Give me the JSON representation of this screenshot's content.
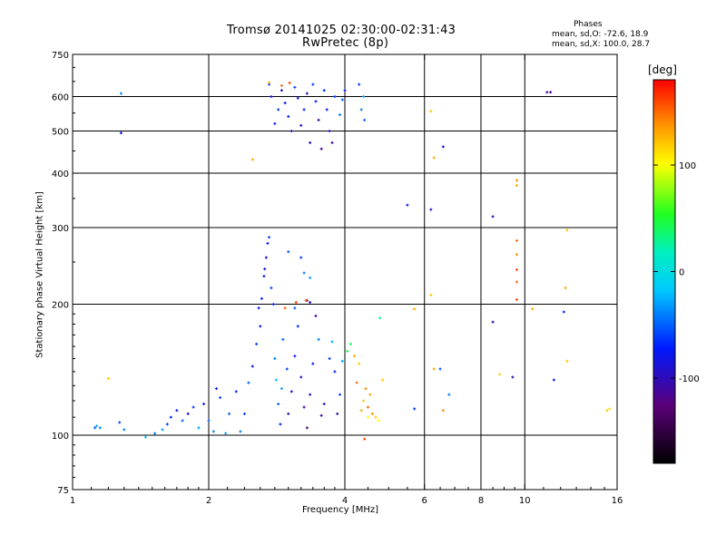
{
  "chart_data": {
    "type": "scatter",
    "title_line1": "Tromsø 20141025 02:30:00-02:31:43",
    "title_line2": "RwPretec (8p)",
    "phase_header": "Phases",
    "phase_o_text": "mean, sd,O: -72.6, 18.9",
    "phase_x_text": "mean, sd,X: 100.0, 28.7",
    "xlabel": "Frequency [MHz]",
    "ylabel": "Stationary phase Virtual Height [km]",
    "x_scale": "log",
    "y_scale": "log",
    "xlim": [
      1,
      16
    ],
    "ylim": [
      75,
      750
    ],
    "x_ticks": [
      1,
      2,
      4,
      6,
      8,
      10,
      16
    ],
    "y_ticks": [
      75,
      100,
      200,
      300,
      400,
      500,
      600,
      750
    ],
    "x_gridlines": [
      2,
      4,
      6,
      8,
      10
    ],
    "y_gridlines": [
      100,
      200,
      300,
      400,
      500,
      600
    ],
    "grid": true,
    "colorbar": {
      "title": "[deg]",
      "range": [
        -180,
        180
      ],
      "ticks": [
        100,
        0,
        -100
      ],
      "colormap": "rainbow (black-purple-blue-cyan-green-yellow-orange-red)"
    },
    "points": [
      [
        1.12,
        104,
        -50
      ],
      [
        1.13,
        105,
        -30
      ],
      [
        1.15,
        104,
        -40
      ],
      [
        1.27,
        107,
        -60
      ],
      [
        1.3,
        103,
        -40
      ],
      [
        1.28,
        610,
        -40
      ],
      [
        1.28,
        495,
        -80
      ],
      [
        1.2,
        135,
        120
      ],
      [
        1.45,
        99,
        -20
      ],
      [
        1.52,
        101,
        -40
      ],
      [
        1.58,
        103,
        -30
      ],
      [
        1.62,
        106,
        -60
      ],
      [
        1.65,
        110,
        -70
      ],
      [
        1.7,
        114,
        -80
      ],
      [
        1.75,
        108,
        -50
      ],
      [
        1.8,
        112,
        -90
      ],
      [
        1.85,
        116,
        -60
      ],
      [
        1.9,
        104,
        -30
      ],
      [
        1.95,
        118,
        -80
      ],
      [
        2.0,
        108,
        -50
      ],
      [
        2.05,
        102,
        -40
      ],
      [
        2.08,
        128,
        -70
      ],
      [
        2.12,
        122,
        -60
      ],
      [
        2.18,
        101,
        -30
      ],
      [
        2.22,
        112,
        -50
      ],
      [
        2.3,
        126,
        -70
      ],
      [
        2.35,
        102,
        -40
      ],
      [
        2.4,
        112,
        -60
      ],
      [
        2.45,
        132,
        -50
      ],
      [
        2.5,
        144,
        -80
      ],
      [
        2.55,
        162,
        -60
      ],
      [
        2.6,
        178,
        -80
      ],
      [
        2.62,
        206,
        -70
      ],
      [
        2.65,
        232,
        -80
      ],
      [
        2.68,
        256,
        -90
      ],
      [
        2.7,
        276,
        -70
      ],
      [
        2.72,
        285,
        -60
      ],
      [
        2.66,
        241,
        -85
      ],
      [
        2.58,
        196,
        -80
      ],
      [
        2.75,
        218,
        -60
      ],
      [
        2.78,
        200,
        -70
      ],
      [
        2.8,
        150,
        -40
      ],
      [
        2.82,
        134,
        -20
      ],
      [
        2.85,
        118,
        -50
      ],
      [
        2.88,
        106,
        -70
      ],
      [
        2.9,
        128,
        -30
      ],
      [
        2.92,
        166,
        -50
      ],
      [
        2.95,
        196,
        150
      ],
      [
        2.98,
        142,
        -60
      ],
      [
        3.0,
        112,
        -100
      ],
      [
        3.05,
        126,
        -90
      ],
      [
        3.1,
        152,
        -80
      ],
      [
        3.15,
        178,
        -70
      ],
      [
        3.2,
        136,
        -100
      ],
      [
        3.25,
        116,
        -110
      ],
      [
        3.3,
        104,
        -120
      ],
      [
        3.35,
        124,
        -90
      ],
      [
        3.4,
        146,
        -80
      ],
      [
        3.45,
        188,
        -110
      ],
      [
        3.5,
        166,
        -40
      ],
      [
        3.55,
        111,
        -110
      ],
      [
        3.6,
        118,
        -100
      ],
      [
        3.7,
        150,
        -60
      ],
      [
        3.75,
        164,
        -30
      ],
      [
        3.8,
        140,
        -70
      ],
      [
        3.85,
        112,
        -100
      ],
      [
        3.9,
        124,
        -60
      ],
      [
        3.95,
        148,
        -30
      ],
      [
        3.3,
        204,
        -110
      ],
      [
        3.35,
        202,
        -100
      ],
      [
        3.2,
        256,
        -60
      ],
      [
        3.0,
        264,
        -50
      ],
      [
        3.25,
        236,
        -40
      ],
      [
        3.35,
        230,
        -30
      ],
      [
        3.1,
        196,
        -50
      ],
      [
        3.12,
        202,
        160
      ],
      [
        3.28,
        204,
        150
      ],
      [
        4.05,
        156,
        50
      ],
      [
        4.12,
        162,
        40
      ],
      [
        4.2,
        152,
        130
      ],
      [
        4.25,
        132,
        150
      ],
      [
        4.3,
        146,
        120
      ],
      [
        4.35,
        114,
        130
      ],
      [
        4.4,
        120,
        120
      ],
      [
        4.45,
        128,
        140
      ],
      [
        4.5,
        116,
        150
      ],
      [
        4.55,
        124,
        130
      ],
      [
        4.6,
        112,
        140
      ],
      [
        4.68,
        110,
        120
      ],
      [
        4.75,
        108,
        100
      ],
      [
        4.78,
        186,
        30
      ],
      [
        4.85,
        134,
        120
      ],
      [
        4.42,
        98,
        160
      ],
      [
        4.5,
        110,
        100
      ],
      [
        2.72,
        640,
        -60
      ],
      [
        2.75,
        600,
        -80
      ],
      [
        2.8,
        520,
        -70
      ],
      [
        2.85,
        560,
        -60
      ],
      [
        2.9,
        620,
        -90
      ],
      [
        2.95,
        580,
        -80
      ],
      [
        3.0,
        540,
        -70
      ],
      [
        3.05,
        500,
        -100
      ],
      [
        3.1,
        630,
        -60
      ],
      [
        3.15,
        595,
        -80
      ],
      [
        3.2,
        515,
        -90
      ],
      [
        3.25,
        560,
        -70
      ],
      [
        3.3,
        610,
        -100
      ],
      [
        3.35,
        470,
        -90
      ],
      [
        3.4,
        640,
        -60
      ],
      [
        3.45,
        585,
        -80
      ],
      [
        3.5,
        530,
        -110
      ],
      [
        3.55,
        455,
        -120
      ],
      [
        3.6,
        620,
        -70
      ],
      [
        3.65,
        560,
        -80
      ],
      [
        3.7,
        500,
        -90
      ],
      [
        3.75,
        470,
        -110
      ],
      [
        3.8,
        600,
        -60
      ],
      [
        3.9,
        545,
        -40
      ],
      [
        3.95,
        590,
        -50
      ],
      [
        4.0,
        620,
        -70
      ],
      [
        4.3,
        640,
        -60
      ],
      [
        4.35,
        560,
        -40
      ],
      [
        4.4,
        600,
        -30
      ],
      [
        4.42,
        530,
        -50
      ],
      [
        2.72,
        646,
        130
      ],
      [
        2.9,
        636,
        150
      ],
      [
        3.02,
        645,
        160
      ],
      [
        2.5,
        430,
        130
      ],
      [
        5.5,
        338,
        -80
      ],
      [
        6.2,
        330,
        -90
      ],
      [
        6.2,
        555,
        120
      ],
      [
        6.3,
        434,
        130
      ],
      [
        6.6,
        460,
        -80
      ],
      [
        6.2,
        210,
        120
      ],
      [
        6.3,
        142,
        130
      ],
      [
        6.5,
        142,
        -50
      ],
      [
        6.6,
        114,
        140
      ],
      [
        6.8,
        124,
        -40
      ],
      [
        5.7,
        195,
        130
      ],
      [
        5.7,
        115,
        -60
      ],
      [
        8.5,
        318,
        -100
      ],
      [
        8.5,
        182,
        -100
      ],
      [
        8.8,
        138,
        120
      ],
      [
        9.4,
        136,
        -100
      ],
      [
        9.6,
        385,
        140
      ],
      [
        9.6,
        375,
        130
      ],
      [
        9.6,
        280,
        150
      ],
      [
        9.6,
        260,
        140
      ],
      [
        9.6,
        240,
        160
      ],
      [
        9.6,
        225,
        150
      ],
      [
        9.6,
        205,
        160
      ],
      [
        10.4,
        195,
        130
      ],
      [
        11.2,
        614,
        -110
      ],
      [
        11.4,
        614,
        -120
      ],
      [
        12.4,
        296,
        120
      ],
      [
        12.3,
        218,
        130
      ],
      [
        11.6,
        134,
        -80
      ],
      [
        12.4,
        148,
        120
      ],
      [
        12.2,
        192,
        -70
      ],
      [
        15.2,
        114,
        120
      ],
      [
        15.4,
        115,
        110
      ]
    ]
  }
}
